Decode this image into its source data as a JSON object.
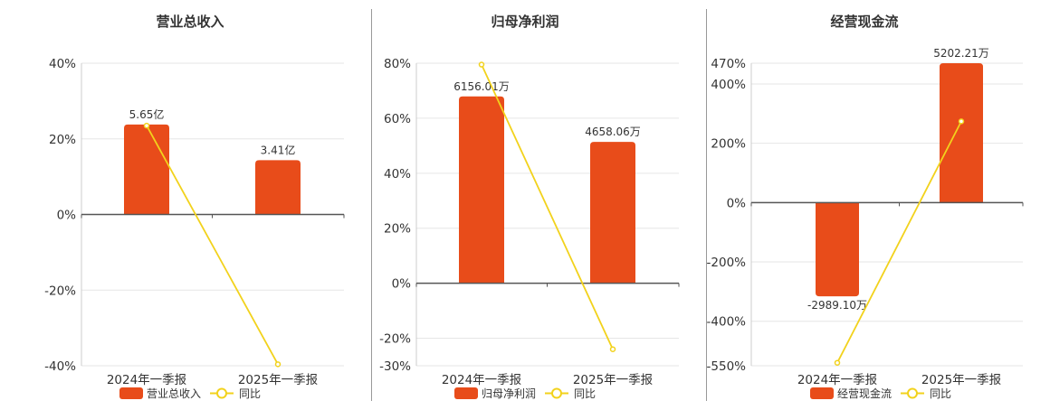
{
  "colors": {
    "bar": "#e84c1a",
    "line": "#f2d21c",
    "grid": "#e6e6e6",
    "axis": "#555555"
  },
  "chart_data": [
    {
      "type": "bar",
      "title": "营业总收入",
      "categories": [
        "2024年一季报",
        "2025年一季报"
      ],
      "bar_series": {
        "name": "营业总收入",
        "values": [
          5.65,
          3.41
        ],
        "labels": [
          "5.65亿",
          "3.41亿"
        ]
      },
      "line_series": {
        "name": "同比",
        "values": [
          23.5,
          -39.6
        ]
      },
      "yticks": [
        "40%",
        "20%",
        "0%",
        "-20%",
        "-40%"
      ],
      "ylim": [
        -40,
        40
      ],
      "bar_scale_max": 9.5,
      "grid": true,
      "legend_position": "bottom"
    },
    {
      "type": "bar",
      "title": "归母净利润",
      "categories": [
        "2024年一季报",
        "2025年一季报"
      ],
      "bar_series": {
        "name": "归母净利润",
        "values": [
          6156.01,
          4658.06
        ],
        "labels": [
          "6156.01万",
          "4658.06万"
        ]
      },
      "line_series": {
        "name": "同比",
        "values": [
          79.5,
          -24.0
        ]
      },
      "yticks": [
        "80%",
        "60%",
        "40%",
        "20%",
        "0%",
        "-20%",
        "-30%"
      ],
      "ylim": [
        -30,
        80
      ],
      "bar_scale_max": 7250,
      "grid": true,
      "legend_position": "bottom"
    },
    {
      "type": "bar",
      "title": "经营现金流",
      "categories": [
        "2024年一季报",
        "2025年一季报"
      ],
      "bar_series": {
        "name": "经营现金流",
        "values": [
          -2989.1,
          5202.21
        ],
        "labels": [
          "-2989.10万",
          "5202.21万"
        ]
      },
      "line_series": {
        "name": "同比",
        "values": [
          -540,
          274
        ]
      },
      "yticks": [
        "470%",
        "400%",
        "200%",
        "0%",
        "-200%",
        "-400%",
        "-550%"
      ],
      "ylim": [
        -550,
        470
      ],
      "bar_scale_max": 5202.21,
      "grid": true,
      "legend_position": "bottom"
    }
  ]
}
